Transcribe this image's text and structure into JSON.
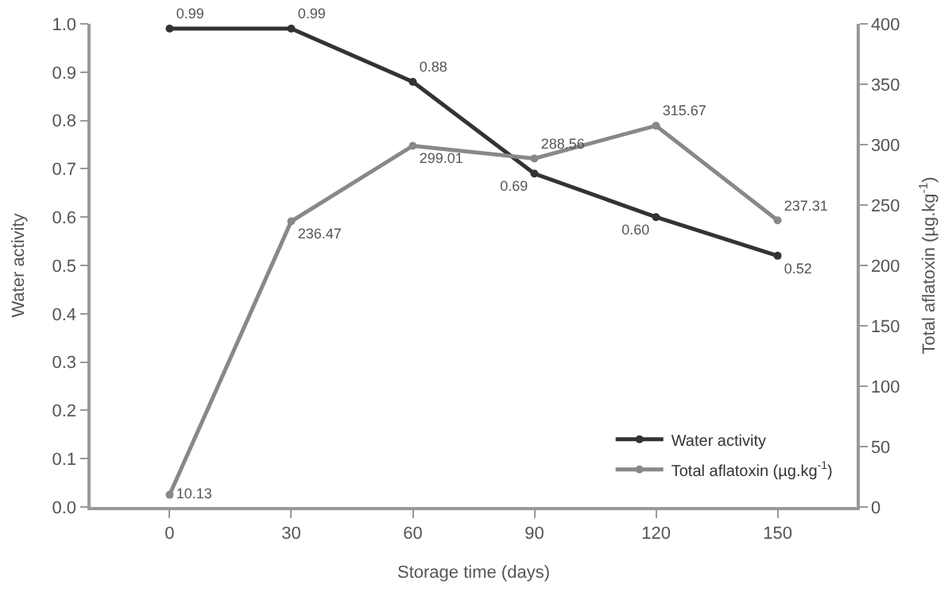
{
  "chart_data": {
    "type": "line",
    "xlabel": "Storage time (days)",
    "ylabel": "Water activity",
    "y2label": "Total aflatoxin (µg.kg$^{-1}$)",
    "categories": [
      "0",
      "30",
      "60",
      "90",
      "120",
      "150"
    ],
    "series": [
      {
        "name": "Water activity",
        "color": "#333333",
        "values": [
          0.99,
          0.99,
          0.88,
          0.69,
          0.6,
          0.52
        ],
        "value_labels": [
          "0.99",
          "0.99",
          "0.88",
          "0.69",
          "0.60",
          "0.52"
        ]
      },
      {
        "name": "Total aflatoxin (µg.kg$^{-1}$)",
        "color": "#888888",
        "axis": "y2",
        "values": [
          10.13,
          236.47,
          299.01,
          288.56,
          315.67,
          237.31
        ],
        "value_labels": [
          "10.13",
          "236.47",
          "299.01",
          "288.56",
          "315.67",
          "237.31"
        ]
      }
    ],
    "ylim": [
      0,
      1.0
    ],
    "yticks": [
      {
        "value": 0,
        "label": "0.0"
      },
      0.1,
      0.2,
      0.3,
      0.4,
      0.5,
      0.6,
      0.7,
      0.8,
      0.9,
      {
        "value": 1.0,
        "label": "1.0"
      }
    ],
    "y2lim": [
      0,
      400
    ],
    "y2ticks": [
      0,
      50,
      100,
      150,
      200,
      250,
      300,
      350,
      400
    ],
    "legend": "bottom right",
    "marker": "circle",
    "line_style": "solid"
  }
}
